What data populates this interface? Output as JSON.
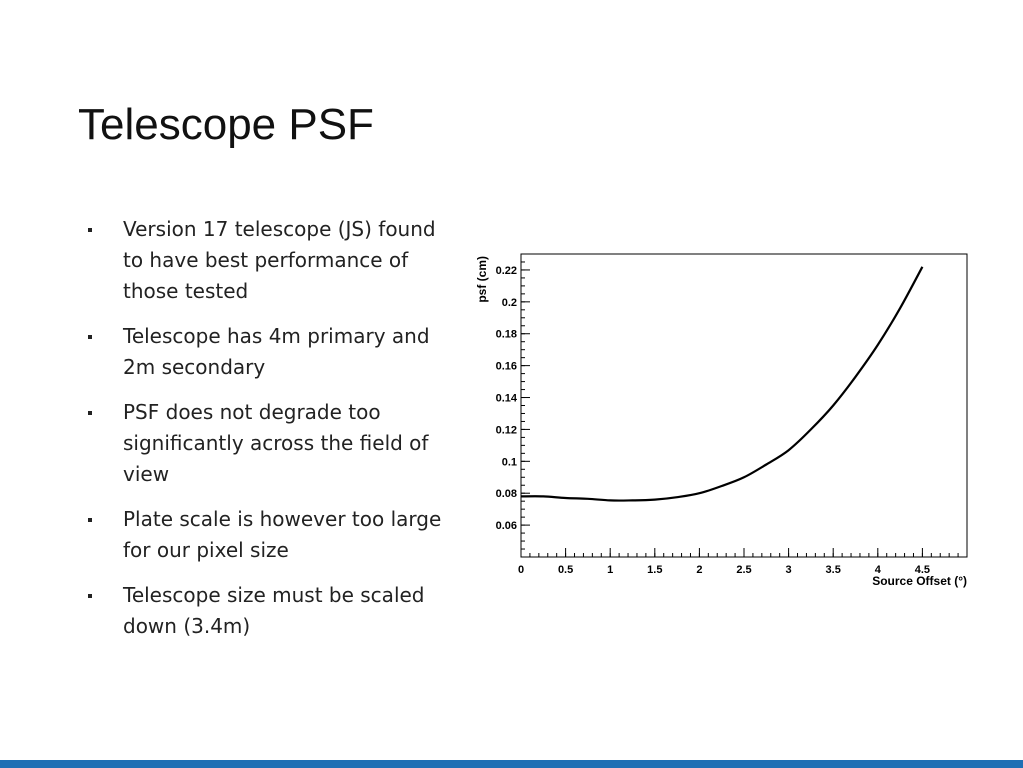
{
  "slide": {
    "title": "Telescope PSF",
    "bullets": [
      "Version 17 telescope (JS) found to have best performance of those tested",
      "Telescope has 4m primary and 2m secondary",
      "PSF does not degrade too significantly across the field of view",
      "Plate scale is however too large for our pixel size",
      "Telescope size must be scaled down (3.4m)"
    ]
  },
  "colors": {
    "bottom_bar": "#1f6fb4",
    "line": "#000000"
  },
  "chart_data": {
    "type": "line",
    "title": "",
    "xlabel": "Source Offset (°)",
    "ylabel": "psf (cm)",
    "xlim": [
      0,
      5
    ],
    "ylim": [
      0.04,
      0.23
    ],
    "xticks": [
      0,
      0.5,
      1,
      1.5,
      2,
      2.5,
      3,
      3.5,
      4,
      4.5
    ],
    "xtick_labels": [
      "0",
      "0.5",
      "1",
      "1.5",
      "2",
      "2.5",
      "3",
      "3.5",
      "4",
      "4.5"
    ],
    "yticks": [
      0.06,
      0.08,
      0.1,
      0.12,
      0.14,
      0.16,
      0.18,
      0.2,
      0.22
    ],
    "ytick_labels": [
      "0.06",
      "0.08",
      "0.1",
      "0.12",
      "0.14",
      "0.16",
      "0.18",
      "0.2",
      "0.22"
    ],
    "grid": false,
    "series": [
      {
        "x": [
          0,
          0.25,
          0.5,
          0.75,
          1.0,
          1.25,
          1.5,
          1.75,
          2.0,
          2.25,
          2.5,
          2.75,
          3.0,
          3.25,
          3.5,
          3.75,
          4.0,
          4.25,
          4.5
        ],
        "y": [
          0.078,
          0.078,
          0.077,
          0.0765,
          0.0755,
          0.0755,
          0.076,
          0.0775,
          0.08,
          0.0845,
          0.09,
          0.098,
          0.107,
          0.12,
          0.135,
          0.153,
          0.173,
          0.196,
          0.222
        ]
      }
    ]
  }
}
